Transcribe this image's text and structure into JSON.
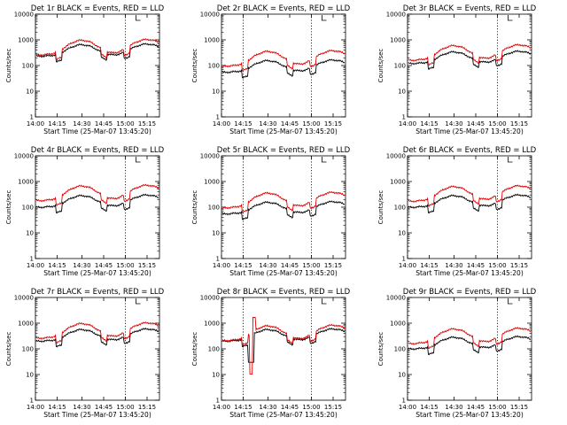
{
  "figure": {
    "start_time_label": "Start Time (25-Mar-07 13:45:20)",
    "ylabel": "Counts/sec",
    "colors": {
      "events": "#000000",
      "lld": "#e00000",
      "axis": "#000000",
      "divider": "#000000"
    }
  },
  "x_axis": {
    "range_minutes": [
      -5,
      35
    ],
    "tick_labels": [
      "14:00",
      "14:15",
      "14:30",
      "14:45",
      "15:00",
      "15:15"
    ],
    "tick_values_minutes": [
      -5,
      2,
      10,
      17,
      24,
      31
    ]
  },
  "y_axis": {
    "scale": "log",
    "range": [
      1,
      10000
    ],
    "tick_values": [
      1,
      10,
      100,
      1000,
      10000
    ],
    "tick_labels": [
      "1",
      "10",
      "100",
      "1000",
      "10000"
    ]
  },
  "chart_data": [
    {
      "type": "line",
      "title": "Det 1r BLACK = Events, RED = LLD",
      "divider_times": [
        -5,
        24
      ],
      "marker_time": 28,
      "series": [
        {
          "name": "Events",
          "baseline": 230,
          "color": "events"
        },
        {
          "name": "LLD",
          "baseline": 260,
          "color": "lld"
        }
      ]
    },
    {
      "type": "line",
      "title": "Det 2r BLACK = Events, RED = LLD",
      "divider_times": [
        2,
        24
      ],
      "marker_time": 28,
      "series": [
        {
          "name": "Events",
          "baseline": 55,
          "color": "events"
        },
        {
          "name": "LLD",
          "baseline": 95,
          "color": "lld"
        }
      ]
    },
    {
      "type": "line",
      "title": "Det 3r BLACK = Events, RED = LLD",
      "divider_times": [
        -5,
        24
      ],
      "marker_time": 28,
      "series": [
        {
          "name": "Events",
          "baseline": 120,
          "color": "events"
        },
        {
          "name": "LLD",
          "baseline": 160,
          "color": "lld"
        }
      ]
    },
    {
      "type": "line",
      "title": "Det 4r BLACK = Events, RED = LLD",
      "divider_times": [
        -5,
        24
      ],
      "marker_time": 28,
      "series": [
        {
          "name": "Events",
          "baseline": 100,
          "color": "events"
        },
        {
          "name": "LLD",
          "baseline": 180,
          "color": "lld"
        }
      ]
    },
    {
      "type": "line",
      "title": "Det 5r BLACK = Events, RED = LLD",
      "divider_times": [
        2,
        24
      ],
      "marker_time": 28,
      "series": [
        {
          "name": "Events",
          "baseline": 55,
          "color": "events"
        },
        {
          "name": "LLD",
          "baseline": 95,
          "color": "lld"
        }
      ]
    },
    {
      "type": "line",
      "title": "Det 6r BLACK = Events, RED = LLD",
      "divider_times": [
        -5,
        24
      ],
      "marker_time": 28,
      "series": [
        {
          "name": "Events",
          "baseline": 100,
          "color": "events"
        },
        {
          "name": "LLD",
          "baseline": 170,
          "color": "lld"
        }
      ]
    },
    {
      "type": "line",
      "title": "Det 7r BLACK = Events, RED = LLD",
      "divider_times": [
        -5,
        24
      ],
      "marker_time": 28,
      "series": [
        {
          "name": "Events",
          "baseline": 200,
          "color": "events"
        },
        {
          "name": "LLD",
          "baseline": 260,
          "color": "lld"
        }
      ]
    },
    {
      "type": "line",
      "title": "Det 8r BLACK = Events, RED = LLD",
      "divider_times": [
        2,
        24
      ],
      "marker_time": 28,
      "series": [
        {
          "name": "Events",
          "baseline": 200,
          "color": "events"
        },
        {
          "name": "LLD",
          "baseline": 210,
          "color": "lld"
        }
      ]
    },
    {
      "type": "line",
      "title": "Det 9r BLACK = Events, RED = LLD",
      "divider_times": [
        -5,
        24
      ],
      "marker_time": 28,
      "series": [
        {
          "name": "Events",
          "baseline": 100,
          "color": "events"
        },
        {
          "name": "LLD",
          "baseline": 160,
          "color": "lld"
        }
      ]
    }
  ]
}
